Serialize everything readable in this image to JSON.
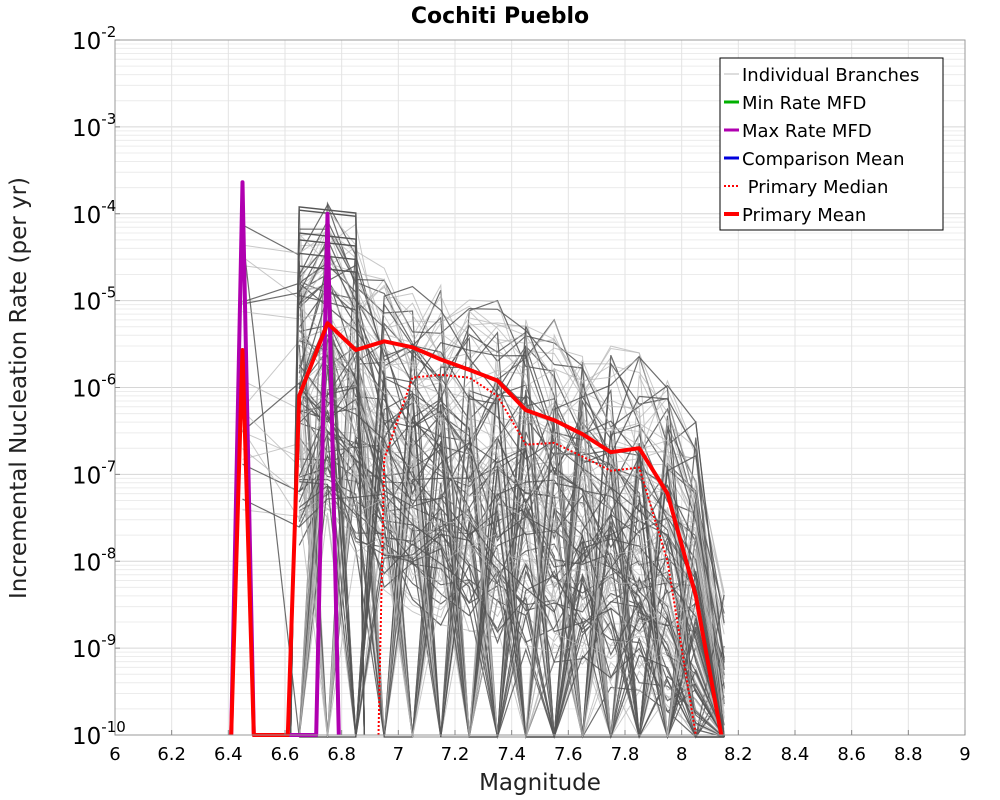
{
  "chart_data": {
    "type": "line",
    "title": "Cochiti Pueblo",
    "xlabel": "Magnitude",
    "ylabel": "Incremental Nucleation Rate (per yr)",
    "xlim": [
      6,
      9
    ],
    "ylim": [
      1e-10,
      0.01
    ],
    "yscale": "log",
    "grid": true,
    "legend_position": "top-right",
    "x_ticks": [
      "6",
      "6.2",
      "6.4",
      "6.6",
      "6.8",
      "7",
      "7.2",
      "7.4",
      "7.6",
      "7.8",
      "8",
      "8.2",
      "8.4",
      "8.6",
      "8.8",
      "9"
    ],
    "y_ticks": [
      {
        "base": "10",
        "exp": "-10"
      },
      {
        "base": "10",
        "exp": "-9"
      },
      {
        "base": "10",
        "exp": "-8"
      },
      {
        "base": "10",
        "exp": "-7"
      },
      {
        "base": "10",
        "exp": "-6"
      },
      {
        "base": "10",
        "exp": "-5"
      },
      {
        "base": "10",
        "exp": "-4"
      },
      {
        "base": "10",
        "exp": "-3"
      },
      {
        "base": "10",
        "exp": "-2"
      }
    ],
    "legend": [
      {
        "label": "Individual Branches",
        "color": "#bbbbbb",
        "style": "solid-thin"
      },
      {
        "label": "Min Rate MFD",
        "color": "#00b000",
        "style": "solid"
      },
      {
        "label": "Max Rate MFD",
        "color": "#b000b0",
        "style": "solid"
      },
      {
        "label": "Comparison Mean",
        "color": "#0000dd",
        "style": "solid"
      },
      {
        "label": " Primary Median",
        "color": "#ff0000",
        "style": "dotted"
      },
      {
        "label": "Primary Mean",
        "color": "#ff0000",
        "style": "solid-thick"
      }
    ],
    "series": [
      {
        "name": "Individual Branches",
        "color": "#555555",
        "envelope_x": [
          6.45,
          6.65,
          6.75,
          6.85,
          6.95,
          7.05,
          7.15,
          7.25,
          7.35,
          7.45,
          7.55,
          7.65,
          7.75,
          7.85,
          7.95,
          8.05,
          8.15
        ],
        "envelope_max": [
          0.0002,
          0.00012,
          0.0002,
          0.0001,
          3e-05,
          1.5e-05,
          1.5e-05,
          1.2e-05,
          1e-05,
          8e-06,
          6e-06,
          5e-06,
          3e-06,
          2.5e-06,
          1.5e-06,
          4e-07,
          5e-09
        ]
      },
      {
        "name": "Max Rate MFD",
        "color": "#b000b0",
        "x": [
          6.41,
          6.45,
          6.49,
          6.71,
          6.75,
          6.79
        ],
        "values": [
          1e-10,
          0.00023,
          1e-10,
          1e-10,
          0.0001,
          1e-10
        ]
      },
      {
        "name": "Primary Median",
        "color": "#ff0000",
        "x": [
          6.93,
          6.95,
          7.05,
          7.15,
          7.25,
          7.35,
          7.45,
          7.55,
          7.65,
          7.75,
          7.85,
          7.95,
          8.05
        ],
        "values": [
          1e-10,
          1.5e-07,
          1.3e-06,
          1.4e-06,
          1.3e-06,
          8e-07,
          2.2e-07,
          2.3e-07,
          1.6e-07,
          1.1e-07,
          1.2e-07,
          1e-08,
          1e-10
        ]
      },
      {
        "name": "Primary Mean",
        "color": "#ff0000",
        "x": [
          6.41,
          6.45,
          6.49,
          6.61,
          6.65,
          6.75,
          6.85,
          6.95,
          7.05,
          7.15,
          7.25,
          7.35,
          7.45,
          7.55,
          7.65,
          7.75,
          7.85,
          7.95,
          8.05,
          8.14
        ],
        "values": [
          1e-10,
          2.7e-06,
          1e-10,
          1e-10,
          8e-07,
          5.5e-06,
          2.7e-06,
          3.4e-06,
          2.9e-06,
          2.1e-06,
          1.6e-06,
          1.2e-06,
          5.5e-07,
          4.2e-07,
          2.9e-07,
          1.8e-07,
          2e-07,
          6e-08,
          4e-09,
          1e-10
        ]
      }
    ]
  }
}
